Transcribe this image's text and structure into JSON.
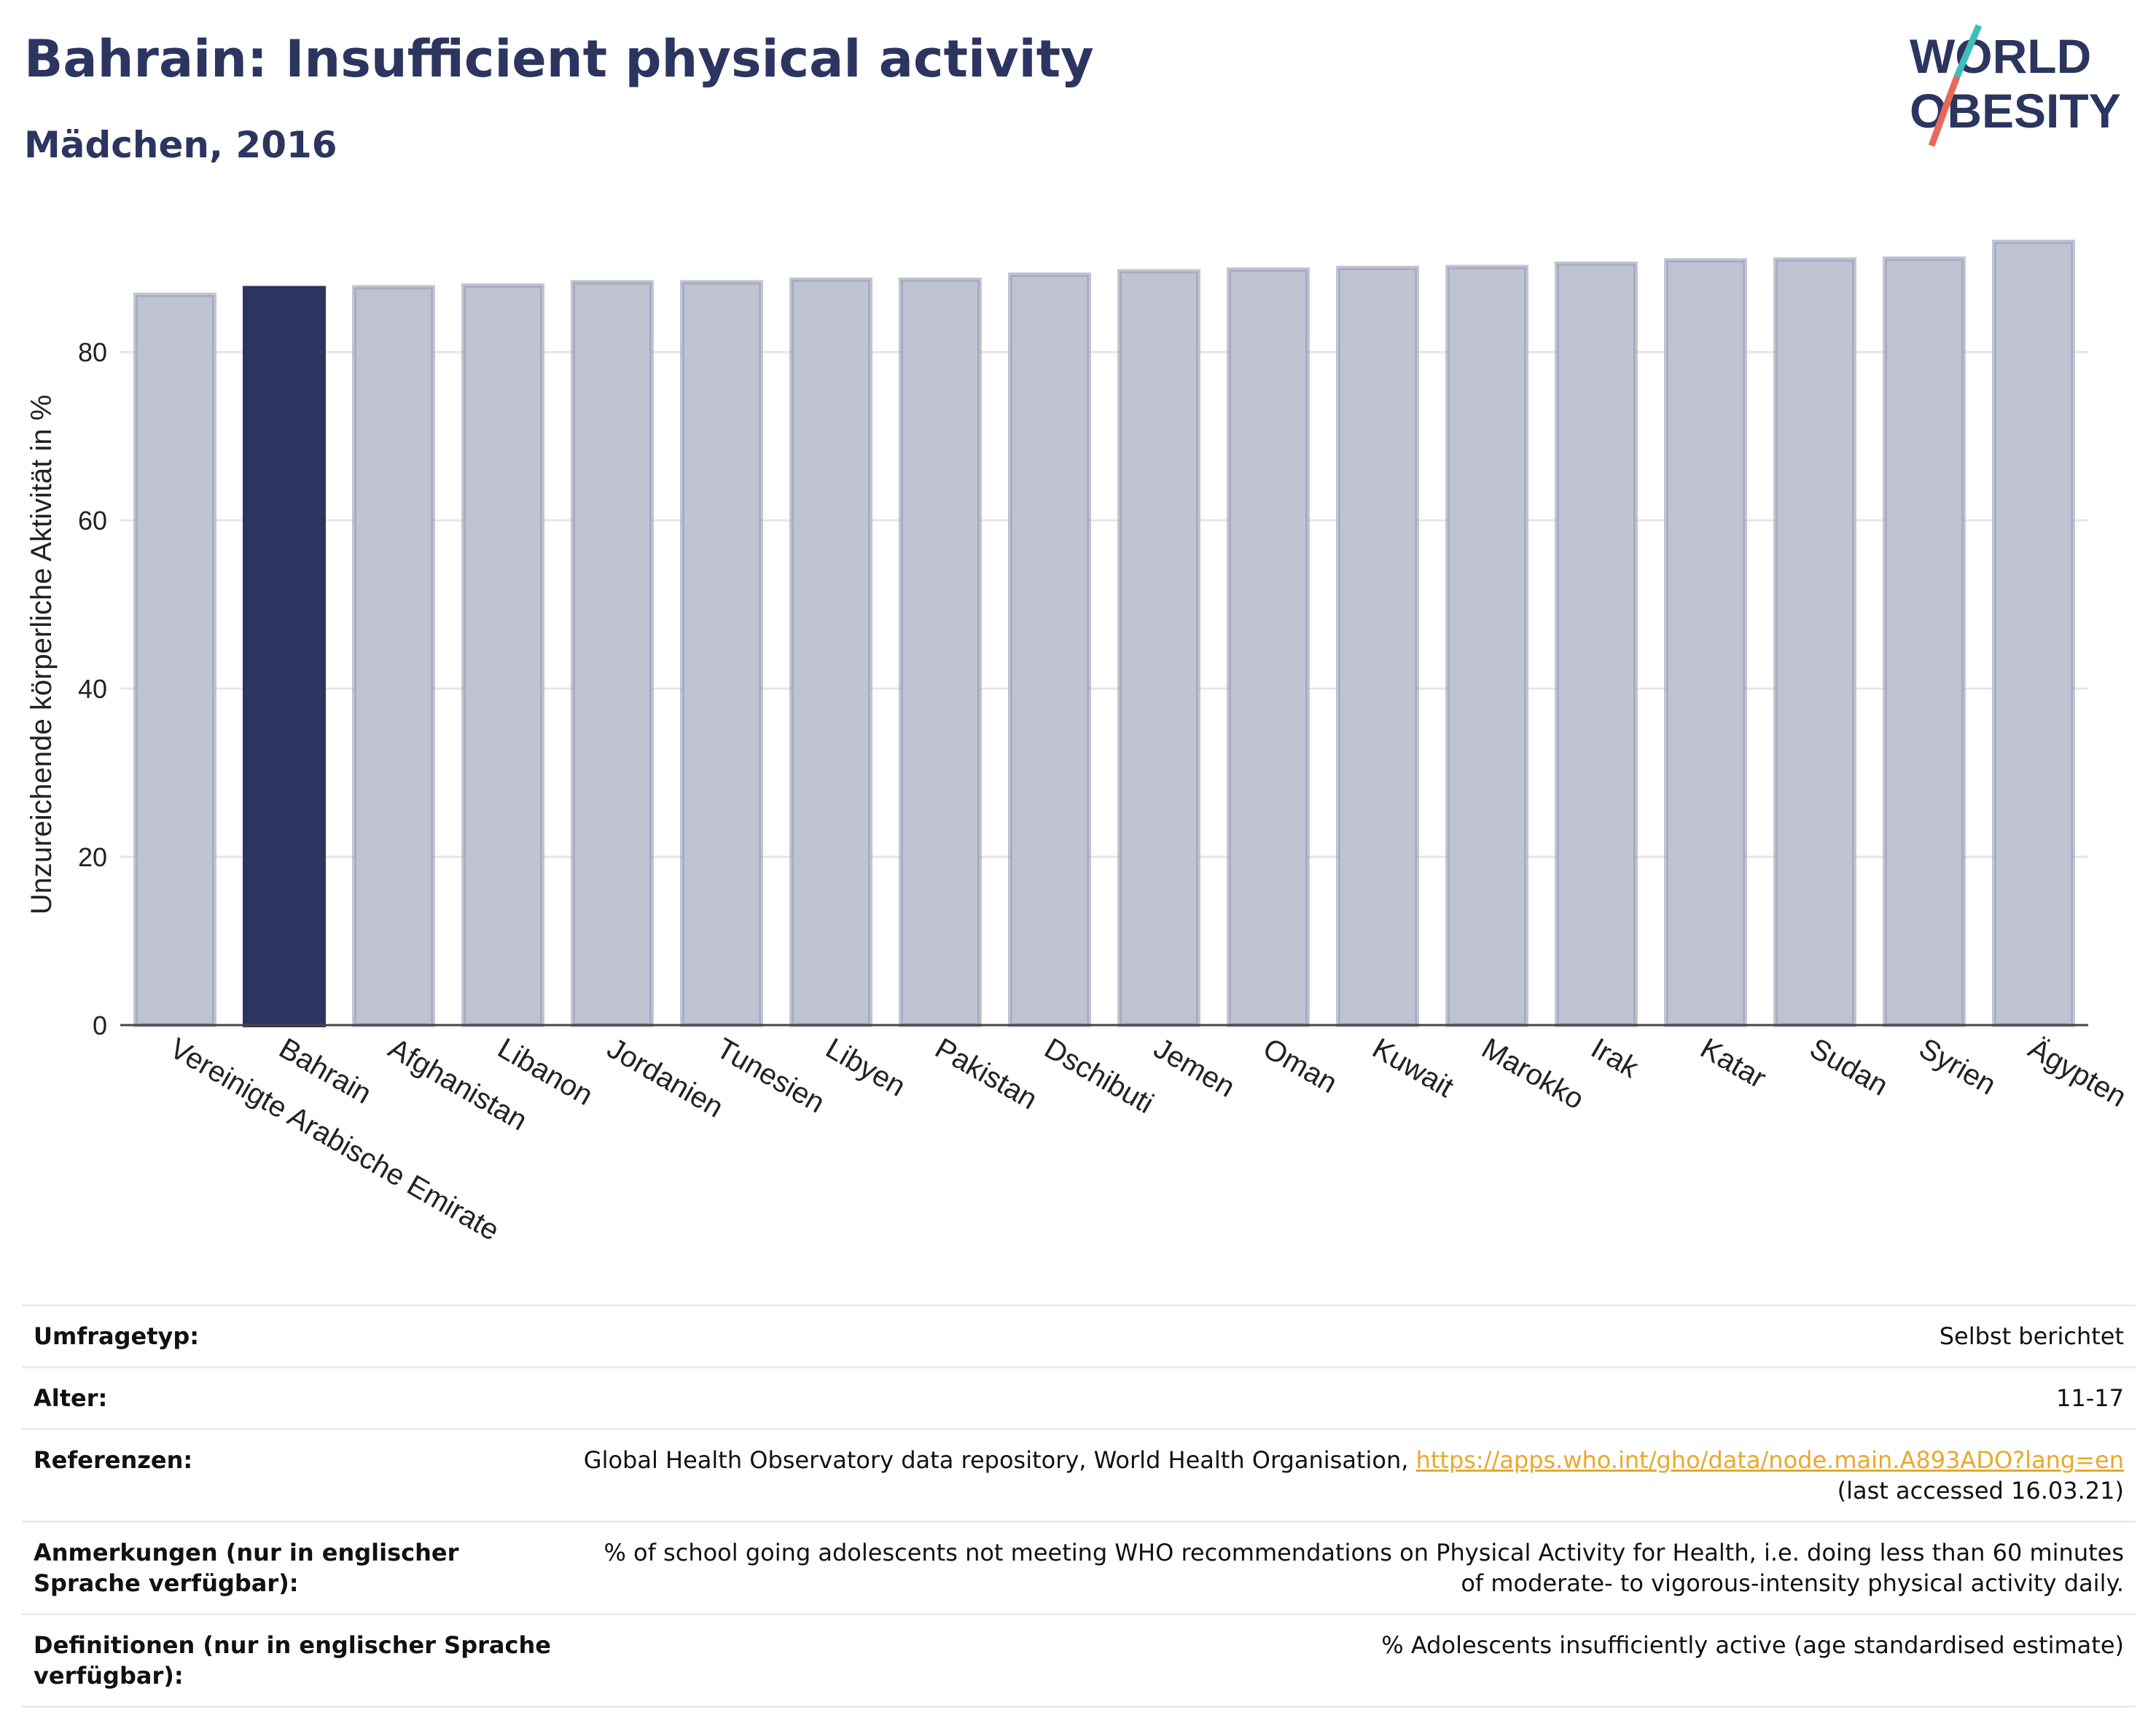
{
  "header": {
    "title": "Bahrain: Insufficient physical activity",
    "subtitle": "Mädchen, 2016",
    "logo_line1": "WORLD",
    "logo_line2": "OBESITY"
  },
  "chart_data": {
    "type": "bar",
    "title": "Bahrain: Insufficient physical activity",
    "subtitle": "Mädchen, 2016",
    "ylabel": "Unzureichende körperliche Aktivität in %",
    "xlabel": "",
    "ylim": [
      0,
      95
    ],
    "yticks": [
      0,
      20,
      40,
      60,
      80
    ],
    "grid": true,
    "highlight": "Bahrain",
    "colors": {
      "default": "#bfc2d1",
      "default_border": "#9a9fb8",
      "highlight": "#2b3560"
    },
    "categories": [
      "Vereinigte Arabische Emirate",
      "Bahrain",
      "Afghanistan",
      "Libanon",
      "Jordanien",
      "Tunesien",
      "Libyen",
      "Pakistan",
      "Dschibuti",
      "Jemen",
      "Oman",
      "Kuwait",
      "Marokko",
      "Irak",
      "Katar",
      "Sudan",
      "Syrien",
      "Ägypten"
    ],
    "values": [
      86.8,
      87.6,
      87.7,
      87.9,
      88.3,
      88.3,
      88.6,
      88.6,
      89.2,
      89.6,
      89.8,
      90.0,
      90.1,
      90.5,
      90.9,
      91.0,
      91.1,
      93.1
    ]
  },
  "meta": {
    "rows": [
      {
        "label": "Umfragetyp:",
        "value": "Selbst berichtet"
      },
      {
        "label": "Alter:",
        "value": "11-17"
      },
      {
        "label": "Referenzen:",
        "value": "Global Health Observatory data repository, World Health Organisation, ",
        "link": "https://apps.who.int/gho/data/node.main.A893ADO?lang=en",
        "value2": "(last accessed 16.03.21)"
      },
      {
        "label": "Anmerkungen (nur in englischer Sprache verfügbar):",
        "value": "% of school going adolescents not meeting WHO recommendations on Physical Activity for Health, i.e. doing less than 60 minutes of moderate- to vigorous-intensity physical activity daily."
      },
      {
        "label": "Definitionen (nur in englischer Sprache verfügbar):",
        "value": "% Adolescents insufficiently active (age standardised estimate)"
      }
    ]
  }
}
